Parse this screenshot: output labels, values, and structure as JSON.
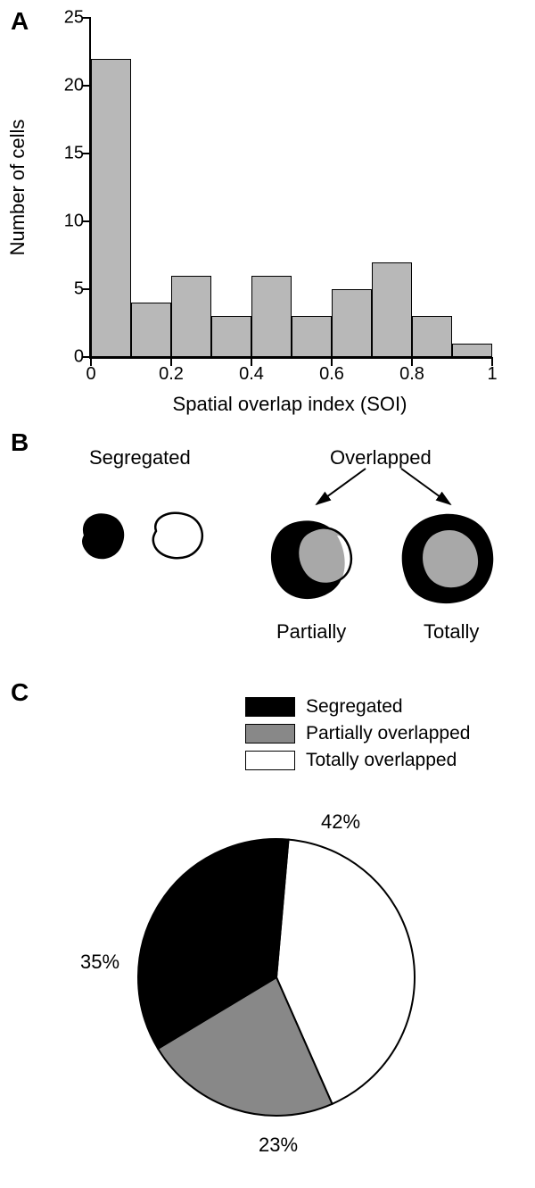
{
  "panelA": {
    "label": "A",
    "type": "histogram",
    "xlabel": "Spatial overlap index (SOI)",
    "ylabel": "Number of cells",
    "xlim": [
      0,
      1
    ],
    "ylim": [
      0,
      25
    ],
    "ytick_step": 5,
    "yticks": [
      0,
      5,
      10,
      15,
      20,
      25
    ],
    "xticks": [
      0,
      0.2,
      0.4,
      0.6,
      0.8,
      1
    ],
    "bin_width": 0.1,
    "bar_color": "#b8b8b8",
    "border_color": "#000000",
    "background_color": "#ffffff",
    "label_fontsize": 22,
    "tick_fontsize": 20,
    "values": [
      22,
      4,
      6,
      3,
      6,
      3,
      5,
      7,
      3,
      1
    ]
  },
  "panelB": {
    "label": "B",
    "type": "infographic",
    "segregated_label": "Segregated",
    "overlapped_label": "Overlapped",
    "partially_label": "Partially",
    "totally_label": "Totally",
    "colors": {
      "black_region": "#000000",
      "gray_region": "#a8a8a8",
      "outline": "#000000",
      "background": "#ffffff"
    }
  },
  "panelC": {
    "label": "C",
    "type": "pie",
    "legend": [
      {
        "label": "Segregated",
        "color": "#000000"
      },
      {
        "label": "Partially overlapped",
        "color": "#888888"
      },
      {
        "label": "Totally overlapped",
        "color": "#ffffff"
      }
    ],
    "slices": [
      {
        "label": "42%",
        "value": 42,
        "color": "#ffffff"
      },
      {
        "label": "35%",
        "value": 35,
        "color": "#000000"
      },
      {
        "label": "23%",
        "value": 23,
        "color": "#888888"
      }
    ],
    "border_color": "#000000",
    "label_fontsize": 22
  }
}
